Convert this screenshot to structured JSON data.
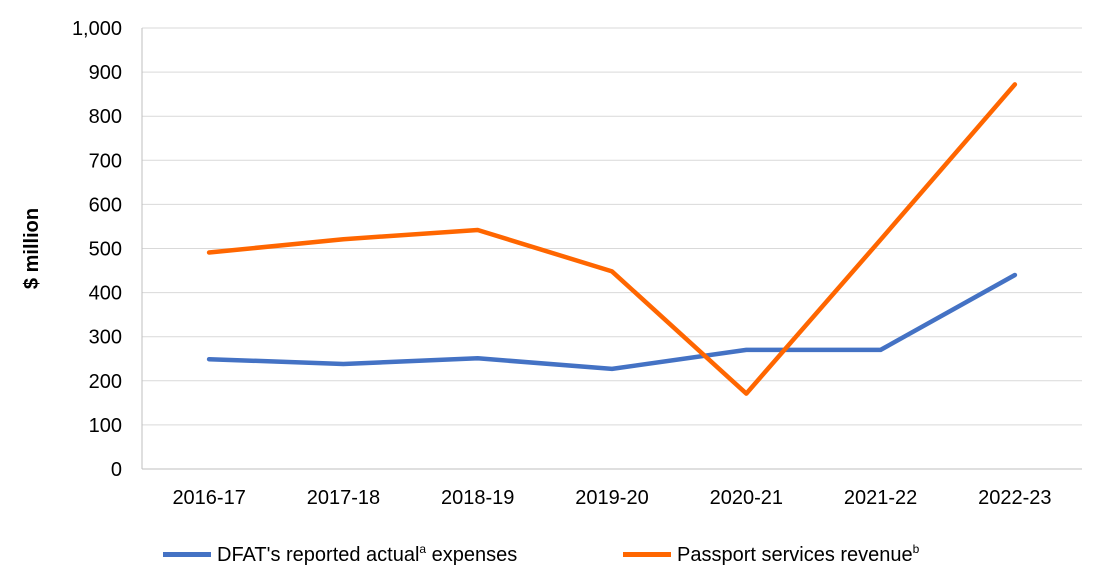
{
  "chart_data": {
    "type": "line",
    "categories": [
      "2016-17",
      "2017-18",
      "2018-19",
      "2019-20",
      "2020-21",
      "2021-22",
      "2022-23"
    ],
    "ylabel": "$ million",
    "ylim": [
      0,
      1000
    ],
    "yticks": [
      0,
      100,
      200,
      300,
      400,
      500,
      600,
      700,
      800,
      900,
      1000
    ],
    "ytick_labels": [
      "0",
      "100",
      "200",
      "300",
      "400",
      "500",
      "600",
      "700",
      "800",
      "900",
      "1,000"
    ],
    "grid": true,
    "legend_position": "bottom",
    "series": [
      {
        "name": "DFAT's reported actual",
        "name_sup": "a",
        "name_suffix": " expenses",
        "color": "#4472C4",
        "values": [
          249,
          238,
          251,
          227,
          270,
          270,
          440
        ]
      },
      {
        "name": "Passport services revenue",
        "name_sup": "b",
        "name_suffix": "",
        "color": "#FF6600",
        "values": [
          491,
          521,
          542,
          448,
          171,
          520,
          872
        ]
      }
    ]
  }
}
